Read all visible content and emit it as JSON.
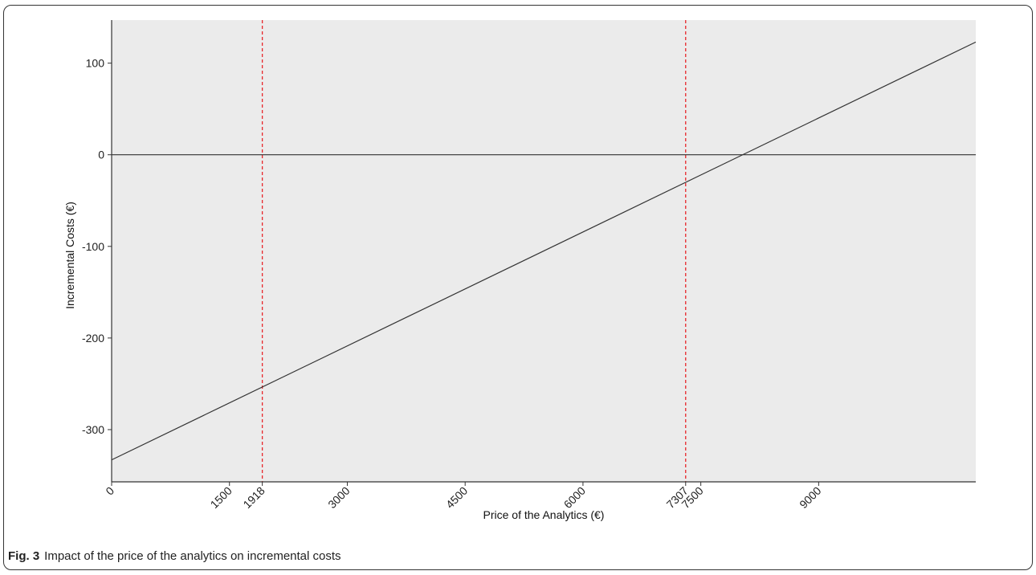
{
  "chart_data": {
    "type": "line",
    "title": "",
    "xlabel": "Price of the Analytics (€)",
    "ylabel": "Incremental Costs (€)",
    "xlim": [
      0,
      11000
    ],
    "ylim": [
      -357,
      147
    ],
    "x_ticks": [
      0,
      1500,
      1918,
      3000,
      4500,
      6000,
      7307,
      7500,
      9000
    ],
    "y_ticks": [
      100,
      0,
      -100,
      -200,
      -300
    ],
    "series": [
      {
        "color": "#333333",
        "x": [
          0,
          11000
        ],
        "y": [
          -333,
          123
        ]
      }
    ],
    "reference_lines": {
      "horizontal": [
        {
          "y": 0,
          "color": "#333333",
          "style": "solid"
        }
      ],
      "vertical": [
        {
          "x": 1918,
          "color": "#e8262a",
          "style": "dashed"
        },
        {
          "x": 7307,
          "color": "#e8262a",
          "style": "dashed"
        }
      ]
    },
    "background_color": "#ebebeb",
    "grid": false
  },
  "caption": {
    "label": "Fig. 3",
    "text": "Impact of the price of the analytics on incremental costs"
  }
}
